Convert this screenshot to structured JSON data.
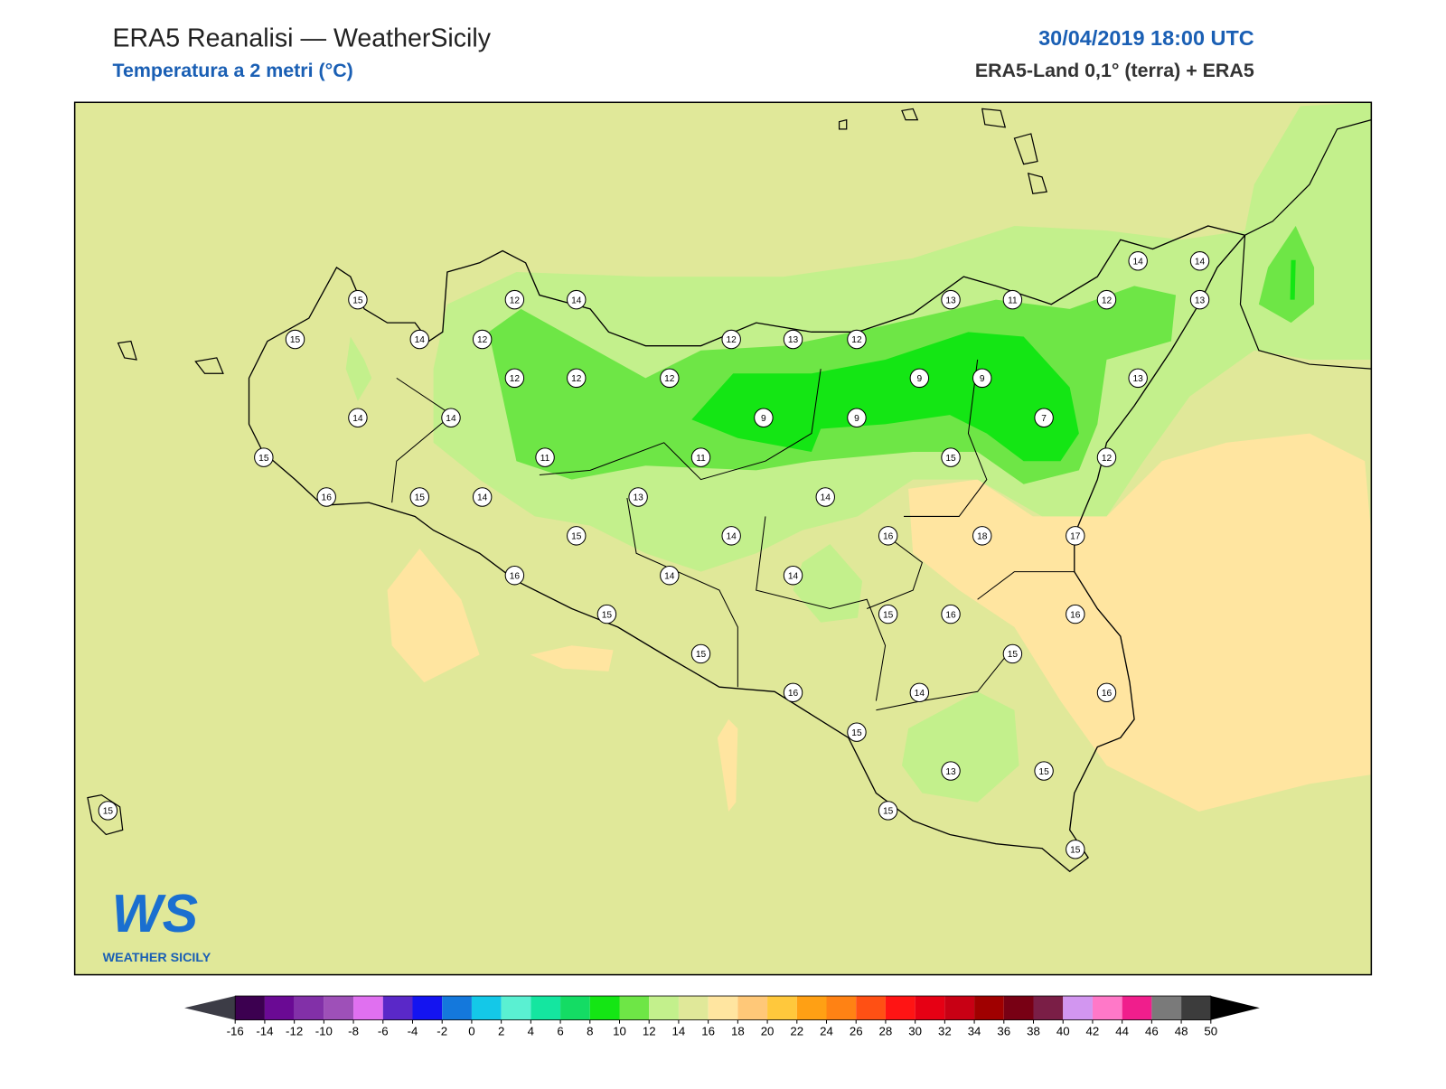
{
  "header": {
    "title": "ERA5 Reanalisi — WeatherSicily",
    "subtitle": "Temperatura a 2 metri (°C)",
    "datetime": "30/04/2019 18:00 UTC",
    "source": "ERA5-Land 0,1° (terra) + ERA5"
  },
  "stations": [
    15,
    15,
    14,
    12,
    12,
    14,
    12,
    12,
    12,
    12,
    13,
    12,
    13,
    11,
    12,
    14,
    14,
    13,
    13,
    9,
    9,
    9,
    9,
    7,
    12,
    14,
    14,
    15,
    16,
    15,
    14,
    11,
    11,
    13,
    15,
    14,
    14,
    15,
    16,
    18,
    17,
    16,
    14,
    14,
    15,
    15,
    16,
    16,
    15,
    15,
    16,
    14,
    16,
    15,
    13,
    15,
    15,
    15,
    15
  ],
  "colorbar": {
    "ticks": [
      -16,
      -14,
      -12,
      -10,
      -8,
      -6,
      -4,
      -2,
      0,
      2,
      4,
      6,
      8,
      10,
      12,
      14,
      16,
      18,
      20,
      22,
      24,
      26,
      28,
      30,
      32,
      34,
      36,
      38,
      40,
      42,
      44,
      46,
      48,
      50
    ],
    "colors": [
      "#3c0050",
      "#6a0a94",
      "#8230a8",
      "#9e50b8",
      "#e070f0",
      "#5a28c8",
      "#1414f0",
      "#1478dc",
      "#14c8e8",
      "#5af0d2",
      "#14e6a0",
      "#14dc64",
      "#14e614",
      "#6ee646",
      "#c3f08c",
      "#e0e899",
      "#ffe5a0",
      "#ffc878",
      "#ffc83c",
      "#ffa014",
      "#ff8214",
      "#ff5014",
      "#ff1414",
      "#e60014",
      "#c80014",
      "#a00000",
      "#780014",
      "#7a1e46",
      "#d296f0",
      "#ff78c8",
      "#f01e8c",
      "#7a7a7a",
      "#3c3c3c"
    ],
    "under_color": "#3c3c46",
    "over_color": "#000000"
  },
  "logo": {
    "mark": "WS",
    "name": "WEATHER SICILY"
  }
}
